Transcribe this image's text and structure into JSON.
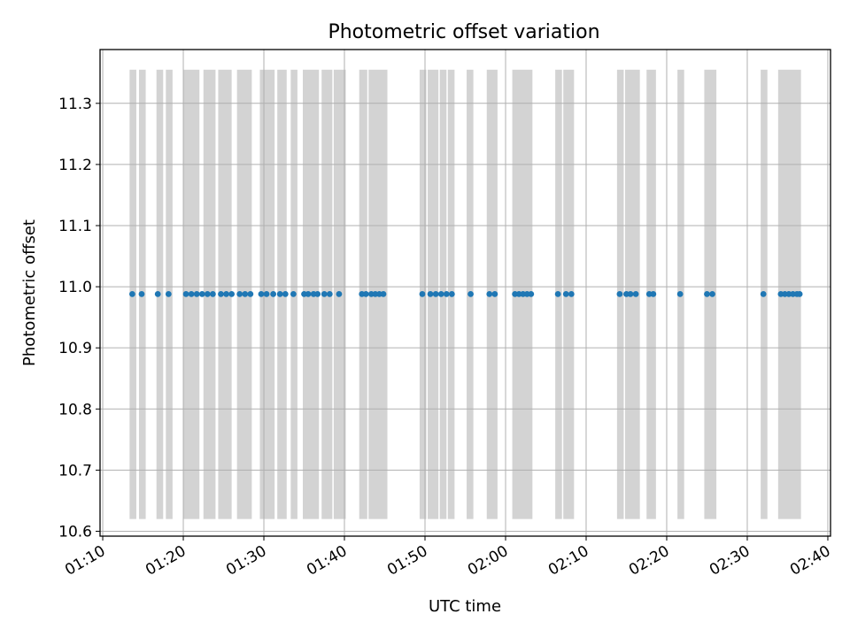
{
  "chart_data": {
    "type": "scatter",
    "title": "Photometric offset variation",
    "xlabel": "UTC time",
    "ylabel": "Photometric offset",
    "xlim": [
      "01:09:40",
      "02:40:20"
    ],
    "ylim": [
      10.592,
      11.388
    ],
    "x_ticks": [
      "01:10",
      "01:20",
      "01:30",
      "01:40",
      "01:50",
      "02:00",
      "02:10",
      "02:20",
      "02:30",
      "02:40"
    ],
    "y_ticks": [
      "10.6",
      "10.7",
      "10.8",
      "10.9",
      "11.0",
      "11.1",
      "11.2",
      "11.3"
    ],
    "grid": true,
    "marker_color": "#1f77b4",
    "band_color": "#d3d3d3",
    "band_range": [
      10.62,
      11.355
    ],
    "bands": [
      [
        "01:13:20",
        "01:14:10"
      ],
      [
        "01:14:30",
        "01:15:20"
      ],
      [
        "01:16:40",
        "01:17:30"
      ],
      [
        "01:17:50",
        "01:18:40"
      ],
      [
        "01:20:00",
        "01:22:00"
      ],
      [
        "01:22:30",
        "01:24:00"
      ],
      [
        "01:24:20",
        "01:26:00"
      ],
      [
        "01:26:40",
        "01:28:30"
      ],
      [
        "01:29:30",
        "01:31:20"
      ],
      [
        "01:31:40",
        "01:32:50"
      ],
      [
        "01:33:20",
        "01:34:10"
      ],
      [
        "01:34:50",
        "01:36:50"
      ],
      [
        "01:37:10",
        "01:38:30"
      ],
      [
        "01:38:40",
        "01:40:10"
      ],
      [
        "01:41:50",
        "01:42:50"
      ],
      [
        "01:43:00",
        "01:45:20"
      ],
      [
        "01:49:20",
        "01:50:10"
      ],
      [
        "01:50:20",
        "01:51:40"
      ],
      [
        "01:51:50",
        "01:52:40"
      ],
      [
        "01:52:50",
        "01:53:40"
      ],
      [
        "01:55:10",
        "01:56:00"
      ],
      [
        "01:57:40",
        "01:59:00"
      ],
      [
        "02:00:50",
        "02:03:20"
      ],
      [
        "02:06:10",
        "02:07:00"
      ],
      [
        "02:07:10",
        "02:08:30"
      ],
      [
        "02:13:50",
        "02:14:40"
      ],
      [
        "02:14:50",
        "02:16:40"
      ],
      [
        "02:17:30",
        "02:18:40"
      ],
      [
        "02:21:20",
        "02:22:10"
      ],
      [
        "02:24:40",
        "02:26:10"
      ],
      [
        "02:31:40",
        "02:32:30"
      ],
      [
        "02:33:50",
        "02:36:40"
      ]
    ],
    "series": [
      {
        "x": [
          "01:13:40",
          "01:14:50",
          "01:16:50",
          "01:18:10",
          "01:20:20",
          "01:21:00",
          "01:21:40",
          "01:22:20",
          "01:23:00",
          "01:23:40",
          "01:24:40",
          "01:25:20",
          "01:26:00",
          "01:27:00",
          "01:27:40",
          "01:28:20",
          "01:29:40",
          "01:30:20",
          "01:31:10",
          "01:32:00",
          "01:32:40",
          "01:33:40",
          "01:35:00",
          "01:35:30",
          "01:36:10",
          "01:36:40",
          "01:37:30",
          "01:38:10",
          "01:39:20",
          "01:42:10",
          "01:42:40",
          "01:43:20",
          "01:43:50",
          "01:44:20",
          "01:44:50",
          "01:49:40",
          "01:50:40",
          "01:51:20",
          "01:52:00",
          "01:52:40",
          "01:53:20",
          "01:55:40",
          "01:58:00",
          "01:58:40",
          "02:01:10",
          "02:01:40",
          "02:02:10",
          "02:02:40",
          "02:03:10",
          "02:06:30",
          "02:07:30",
          "02:08:10",
          "02:14:10",
          "02:15:00",
          "02:15:30",
          "02:16:10",
          "02:17:50",
          "02:18:20",
          "02:21:40",
          "02:25:00",
          "02:25:40",
          "02:32:00",
          "02:34:10",
          "02:34:40",
          "02:35:10",
          "02:35:40",
          "02:36:10",
          "02:36:30"
        ],
        "y": [
          10.988,
          10.988,
          10.988,
          10.988,
          10.988,
          10.988,
          10.988,
          10.988,
          10.988,
          10.988,
          10.988,
          10.988,
          10.988,
          10.988,
          10.988,
          10.988,
          10.988,
          10.988,
          10.988,
          10.988,
          10.988,
          10.988,
          10.988,
          10.988,
          10.988,
          10.988,
          10.988,
          10.988,
          10.988,
          10.988,
          10.988,
          10.988,
          10.988,
          10.988,
          10.988,
          10.988,
          10.988,
          10.988,
          10.988,
          10.988,
          10.988,
          10.988,
          10.988,
          10.988,
          10.988,
          10.988,
          10.988,
          10.988,
          10.988,
          10.988,
          10.988,
          10.988,
          10.988,
          10.988,
          10.988,
          10.988,
          10.988,
          10.988,
          10.988,
          10.988,
          10.988,
          10.988,
          10.988,
          10.988,
          10.988,
          10.988,
          10.988,
          10.988
        ]
      }
    ]
  }
}
